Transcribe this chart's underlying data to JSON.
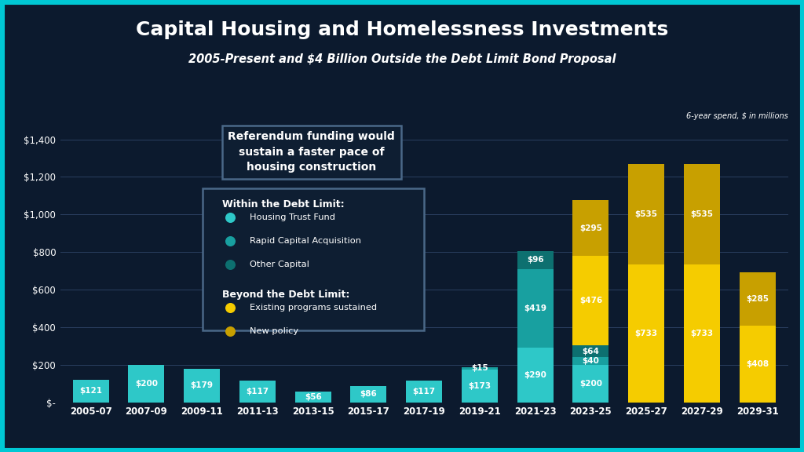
{
  "title": "Capital Housing and Homelessness Investments",
  "subtitle": "2005-Present and $4 Billion Outside the Debt Limit Bond Proposal",
  "note": "6-year spend, $ in millions",
  "bg": "#0c1a2e",
  "border_color": "#00c8d4",
  "border_width": 8,
  "categories": [
    "2005-07",
    "2007-09",
    "2009-11",
    "2011-13",
    "2013-15",
    "2015-17",
    "2017-19",
    "2019-21",
    "2021-23",
    "2023-25",
    "2025-27",
    "2027-29",
    "2029-31"
  ],
  "seg_htf": [
    121,
    200,
    179,
    117,
    56,
    86,
    117,
    173,
    290,
    200,
    0,
    0,
    0
  ],
  "seg_rca": [
    0,
    0,
    0,
    0,
    0,
    0,
    0,
    15,
    419,
    40,
    0,
    0,
    0
  ],
  "seg_oc": [
    0,
    0,
    0,
    0,
    0,
    0,
    0,
    0,
    96,
    64,
    0,
    0,
    0
  ],
  "seg_eps": [
    0,
    0,
    0,
    0,
    0,
    0,
    0,
    0,
    0,
    476,
    733,
    733,
    408
  ],
  "seg_np": [
    0,
    0,
    0,
    0,
    0,
    0,
    0,
    0,
    0,
    295,
    535,
    535,
    285
  ],
  "c_htf": "#2ec8c8",
  "c_rca": "#18a0a0",
  "c_oc": "#0d7070",
  "c_eps": "#f5cc00",
  "c_np": "#c8a000",
  "yticks": [
    0,
    200,
    400,
    600,
    800,
    1000,
    1200,
    1400
  ],
  "ytick_labels": [
    "$-",
    "$200",
    "$400",
    "$600",
    "$800",
    "$1,000",
    "$1,200",
    "$1,400"
  ],
  "ylim": [
    0,
    1480
  ],
  "referendum_text": "Referendum funding would\nsustain a faster pace of\nhousing construction",
  "within_title": "Within the Debt Limit:",
  "beyond_title": "Beyond the Debt Limit:",
  "within_labels": [
    "Housing Trust Fund",
    "Rapid Capital Acquisition",
    "Other Capital"
  ],
  "beyond_labels": [
    "Existing programs sustained",
    "New policy"
  ],
  "legend_bg": "#0e1e32",
  "legend_border": "#4a6888",
  "ref_box_bg": "#0e1e32",
  "ref_box_border": "#4a6888"
}
